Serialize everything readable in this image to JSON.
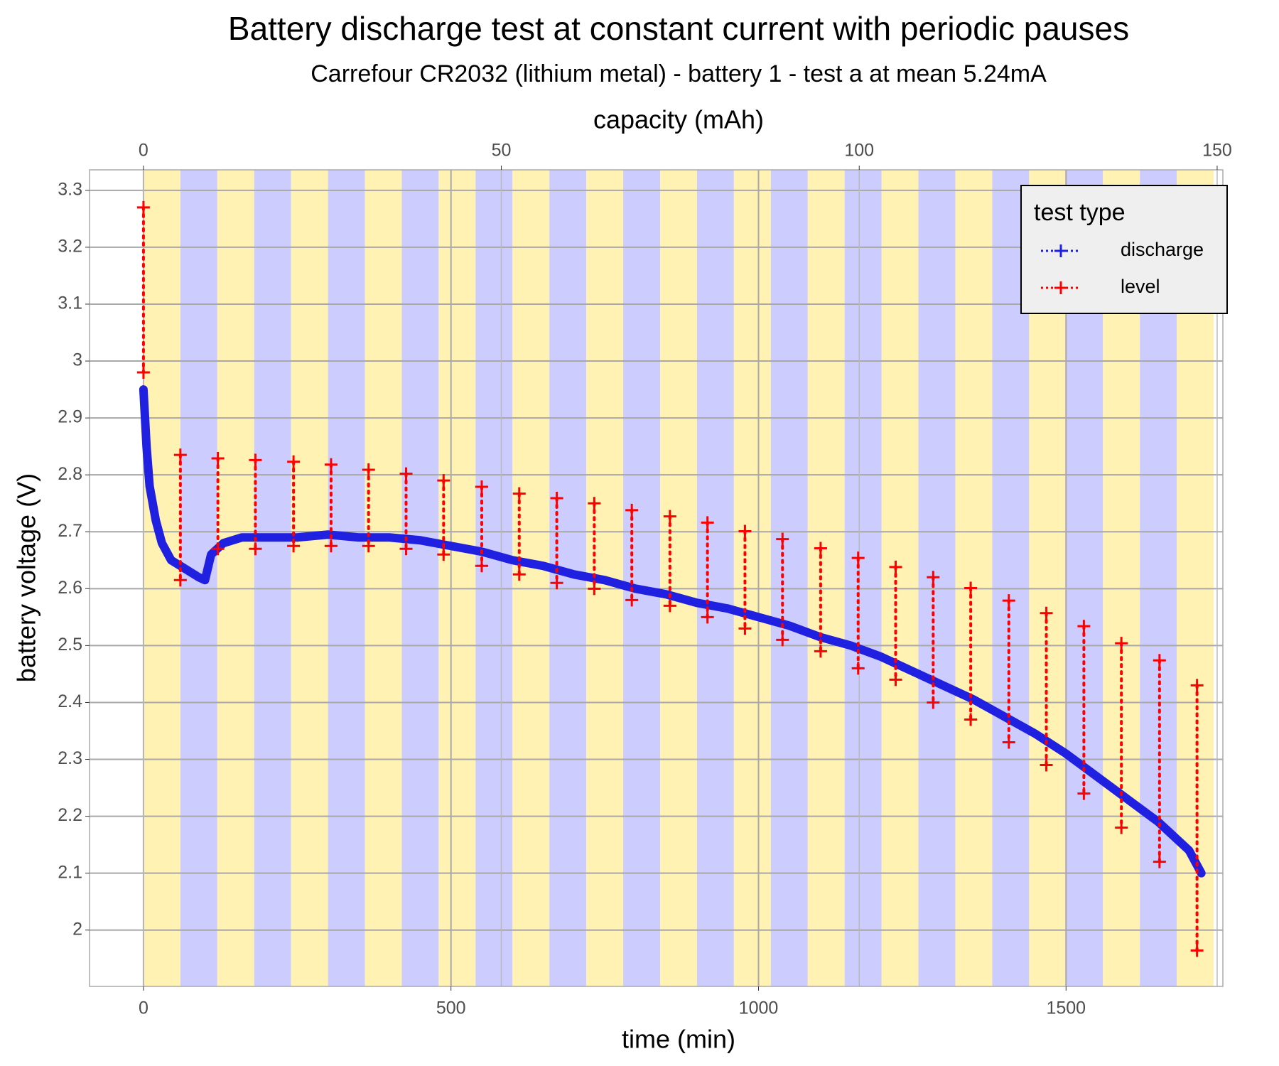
{
  "chart_data": {
    "type": "line",
    "title": "Battery discharge test at constant current with periodic pauses",
    "subtitle": "Carrefour CR2032 (lithium metal) - battery 1 - test a at mean 5.24mA",
    "x_label": "time (min)",
    "x2_label": "capacity (mAh)",
    "y_label": "battery voltage (V)",
    "xlim": [
      -87.7,
      1755
    ],
    "xticks": [
      0,
      500,
      1000,
      1500
    ],
    "x2lim": [
      -7.53,
      150.8
    ],
    "x2ticks": [
      0,
      50,
      100,
      150
    ],
    "ylim": [
      1.901,
      3.336
    ],
    "yticks": [
      2.0,
      2.1,
      2.2,
      2.3,
      2.4,
      2.5,
      2.6,
      2.7,
      2.8,
      2.9,
      3.0,
      3.1,
      3.2,
      3.3
    ],
    "grid": true,
    "bands": {
      "edges": [
        0,
        60,
        120,
        180,
        240,
        300,
        360,
        420,
        480,
        540,
        600,
        660,
        720,
        780,
        840,
        900,
        960,
        1020,
        1080,
        1140,
        1200,
        1260,
        1320,
        1380,
        1440,
        1500,
        1560,
        1620,
        1680,
        1740
      ],
      "colors": [
        "#fff2b3",
        "#ccccff"
      ]
    },
    "legend_title": "test type",
    "legend_position": "top-right",
    "series": [
      {
        "name": "discharge",
        "color": "#2020e0",
        "x": [
          0,
          5,
          10,
          20,
          30,
          45,
          60,
          90,
          100,
          110,
          130,
          160,
          200,
          250,
          300,
          350,
          400,
          450,
          500,
          550,
          600,
          650,
          700,
          750,
          800,
          850,
          900,
          950,
          1000,
          1050,
          1100,
          1150,
          1200,
          1250,
          1300,
          1350,
          1400,
          1450,
          1500,
          1550,
          1600,
          1650,
          1700,
          1720
        ],
        "values": [
          2.95,
          2.85,
          2.78,
          2.72,
          2.68,
          2.65,
          2.64,
          2.62,
          2.615,
          2.66,
          2.68,
          2.69,
          2.69,
          2.69,
          2.695,
          2.69,
          2.69,
          2.685,
          2.675,
          2.665,
          2.65,
          2.64,
          2.625,
          2.615,
          2.6,
          2.59,
          2.575,
          2.565,
          2.55,
          2.535,
          2.515,
          2.5,
          2.48,
          2.455,
          2.43,
          2.405,
          2.375,
          2.345,
          2.31,
          2.27,
          2.23,
          2.19,
          2.14,
          2.1
        ]
      },
      {
        "name": "level",
        "color": "#ff0000",
        "x": [
          0,
          0,
          null,
          60,
          60,
          null,
          121,
          121,
          null,
          182,
          182,
          null,
          244,
          244,
          null,
          305,
          305,
          null,
          366,
          366,
          null,
          427,
          427,
          null,
          488,
          488,
          null,
          550,
          550,
          null,
          611,
          611,
          null,
          672,
          672,
          null,
          733,
          733,
          null,
          794,
          794,
          null,
          856,
          856,
          null,
          917,
          917,
          null,
          978,
          978,
          null,
          1039,
          1039,
          null,
          1101,
          1101,
          null,
          1162,
          1162,
          null,
          1223,
          1223,
          null,
          1284,
          1284,
          null,
          1345,
          1345,
          null,
          1407,
          1407,
          null,
          1468,
          1468,
          null,
          1529,
          1529,
          null,
          1590,
          1590,
          null,
          1652,
          1652,
          null,
          1713,
          1713
        ],
        "values": [
          3.27,
          2.98,
          null,
          2.835,
          2.615,
          null,
          2.829,
          2.67,
          null,
          2.826,
          2.67,
          null,
          2.823,
          2.675,
          null,
          2.818,
          2.675,
          null,
          2.809,
          2.675,
          null,
          2.802,
          2.67,
          null,
          2.79,
          2.66,
          null,
          2.779,
          2.64,
          null,
          2.767,
          2.625,
          null,
          2.759,
          2.61,
          null,
          2.75,
          2.6,
          null,
          2.738,
          2.58,
          null,
          2.727,
          2.57,
          null,
          2.716,
          2.55,
          null,
          2.701,
          2.53,
          null,
          2.687,
          2.51,
          null,
          2.671,
          2.49,
          null,
          2.654,
          2.46,
          null,
          2.638,
          2.44,
          null,
          2.62,
          2.4,
          null,
          2.601,
          2.37,
          null,
          2.579,
          2.33,
          null,
          2.557,
          2.29,
          null,
          2.534,
          2.24,
          null,
          2.504,
          2.18,
          null,
          2.474,
          2.12,
          null,
          2.43,
          1.964
        ]
      }
    ]
  }
}
